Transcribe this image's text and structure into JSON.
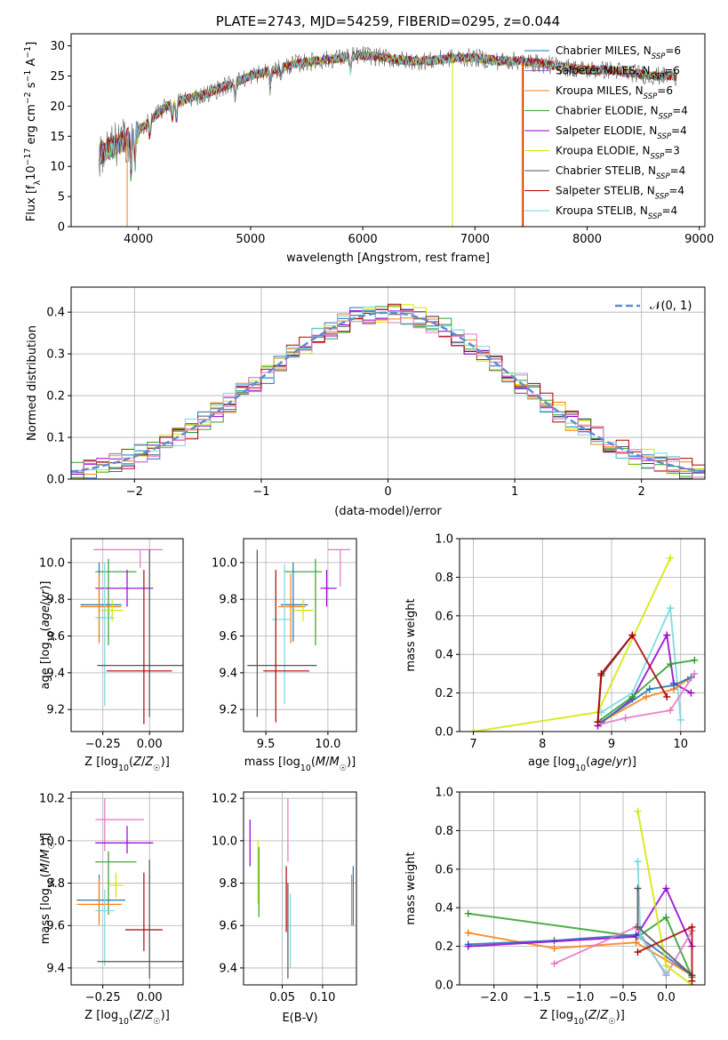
{
  "chart_data": [
    {
      "type": "line",
      "panel": "spectrum",
      "title": "PLATE=2743, MJD=54259, FIBERID=0295, z=0.044",
      "xlabel": "wavelength [Angstrom, rest frame]",
      "ylabel": "Flux [f_λ 10^-17 erg cm^-2 s^-1 A^-1]",
      "xlim": [
        3400,
        9050
      ],
      "ylim": [
        0,
        32
      ],
      "xticks": [
        4000,
        5000,
        6000,
        7000,
        8000,
        9000
      ],
      "yticks": [
        0,
        5,
        10,
        15,
        20,
        25,
        30
      ],
      "grid": false,
      "legend_position": "top-right",
      "series": [
        {
          "name": "Chabrier MILES, N_SSP=6",
          "color": "#1f77b4"
        },
        {
          "name": "Salpeter MILES, N_SSP=6",
          "color": "#9467bd"
        },
        {
          "name": "Kroupa MILES, N_SSP=6",
          "color": "#ff7f0e"
        },
        {
          "name": "Chabrier ELODIE, N_SSP=4",
          "color": "#2ca02c"
        },
        {
          "name": "Salpeter ELODIE, N_SSP=4",
          "color": "#9400d3"
        },
        {
          "name": "Kroupa ELODIE, N_SSP=3",
          "color": "#d4e600"
        },
        {
          "name": "Chabrier STELIB, N_SSP=4",
          "color": "#555555"
        },
        {
          "name": "Salpeter STELIB, N_SSP=4",
          "color": "#b00000"
        },
        {
          "name": "Kroupa STELIB, N_SSP=4",
          "color": "#76d7de"
        }
      ],
      "continuum": {
        "x": [
          3650,
          3800,
          3950,
          4100,
          4250,
          4400,
          4600,
          4800,
          5000,
          5200,
          5400,
          5600,
          5800,
          6000,
          6200,
          6400,
          6600,
          6800,
          7000,
          7200,
          7400,
          7600,
          7800,
          8000,
          8200,
          8400,
          8600,
          8800
        ],
        "y": [
          12,
          13.5,
          15,
          17.5,
          20,
          21,
          22,
          23.5,
          25,
          26,
          27,
          27.5,
          28,
          28.5,
          28,
          27.5,
          27.5,
          28,
          28,
          27.5,
          27.5,
          27,
          26.5,
          26,
          26,
          25.5,
          25,
          25
        ]
      }
    },
    {
      "type": "line",
      "panel": "residual-histogram",
      "xlabel": "(data-model)/error",
      "ylabel": "Normed distribution",
      "xlim": [
        -2.5,
        2.5
      ],
      "ylim": [
        0,
        0.46
      ],
      "xticks": [
        -2,
        -1,
        0,
        1,
        2
      ],
      "yticks": [
        0.0,
        0.1,
        0.2,
        0.3,
        0.4
      ],
      "grid": true,
      "legend_position": "top-right",
      "reference": {
        "name": "𝒩(0, 1)",
        "color": "#5b8dd6",
        "mean": 0,
        "sigma": 1
      },
      "bin_width": 0.1,
      "histogram_colors": [
        "#1f77b4",
        "#ff7f0e",
        "#2ca02c",
        "#9400d3",
        "#d4e600",
        "#555555",
        "#b00000",
        "#76d7de",
        "#e377c2"
      ]
    },
    {
      "type": "scatter",
      "panel": "age-vs-metallicity",
      "xlabel": "Z [log10(Z/Z☉)]",
      "ylabel": "age  [log10(age/yr)]",
      "xlim": [
        -0.42,
        0.18
      ],
      "ylim": [
        9.08,
        10.13
      ],
      "xticks": [
        -0.25,
        0.0
      ],
      "yticks": [
        9.2,
        9.4,
        9.6,
        9.8,
        10.0
      ],
      "grid": true,
      "points": [
        {
          "x": -0.05,
          "y": 10.07,
          "xerr": [
            0.25,
            0.12
          ],
          "yerr": [
            0.1,
            0.0
          ],
          "color": "#e377c2"
        },
        {
          "x": -0.22,
          "y": 9.95,
          "xerr": [
            0.07,
            0.15
          ],
          "yerr": [
            0.4,
            0.07
          ],
          "color": "#2ca02c"
        },
        {
          "x": -0.12,
          "y": 9.86,
          "xerr": [
            0.17,
            0.14
          ],
          "yerr": [
            0.1,
            0.1
          ],
          "color": "#9400d3"
        },
        {
          "x": -0.27,
          "y": 9.77,
          "xerr": [
            0.1,
            0.12
          ],
          "yerr": [
            0.2,
            0.23
          ],
          "color": "#1f77b4"
        },
        {
          "x": -0.27,
          "y": 9.76,
          "xerr": [
            0.1,
            0.12
          ],
          "yerr": [
            0.2,
            0.18
          ],
          "color": "#ff7f0e"
        },
        {
          "x": -0.2,
          "y": 9.74,
          "xerr": [
            0.06,
            0.06
          ],
          "yerr": [
            0.06,
            0.06
          ],
          "color": "#d4e600"
        },
        {
          "x": -0.24,
          "y": 9.7,
          "xerr": [
            0.05,
            0.05
          ],
          "yerr": [
            0.48,
            0.3
          ],
          "color": "#76d7de"
        },
        {
          "x": 0.0,
          "y": 9.44,
          "xerr": [
            0.28,
            0.25
          ],
          "yerr": [
            0.28,
            0.63
          ],
          "color": "#555555"
        },
        {
          "x": -0.03,
          "y": 9.41,
          "xerr": [
            0.2,
            0.15
          ],
          "yerr": [
            0.29,
            0.55
          ],
          "color": "#b00000"
        }
      ]
    },
    {
      "type": "scatter",
      "panel": "age-vs-mass",
      "xlabel": "mass [log10(M/M☉)]",
      "ylabel": "",
      "xlim": [
        9.32,
        10.23
      ],
      "ylim": [
        9.08,
        10.13
      ],
      "xticks": [
        9.5,
        10.0
      ],
      "yticks": [
        9.2,
        9.4,
        9.6,
        9.8,
        10.0
      ],
      "grid": true,
      "points": [
        {
          "x": 10.1,
          "y": 10.07,
          "xerr": [
            0.1,
            0.08
          ],
          "yerr": [
            0.2,
            0.0
          ],
          "color": "#e377c2"
        },
        {
          "x": 9.9,
          "y": 9.95,
          "xerr": [
            0.25,
            0.05
          ],
          "yerr": [
            0.4,
            0.07
          ],
          "color": "#2ca02c"
        },
        {
          "x": 9.99,
          "y": 9.86,
          "xerr": [
            0.05,
            0.08
          ],
          "yerr": [
            0.1,
            0.1
          ],
          "color": "#9400d3"
        },
        {
          "x": 9.72,
          "y": 9.77,
          "xerr": [
            0.1,
            0.12
          ],
          "yerr": [
            0.2,
            0.23
          ],
          "color": "#1f77b4"
        },
        {
          "x": 9.7,
          "y": 9.76,
          "xerr": [
            0.1,
            0.12
          ],
          "yerr": [
            0.2,
            0.18
          ],
          "color": "#ff7f0e"
        },
        {
          "x": 9.8,
          "y": 9.74,
          "xerr": [
            0.08,
            0.08
          ],
          "yerr": [
            0.06,
            0.06
          ],
          "color": "#d4e600"
        },
        {
          "x": 9.65,
          "y": 9.69,
          "xerr": [
            0.1,
            0.05
          ],
          "yerr": [
            0.46,
            0.3
          ],
          "color": "#76d7de"
        },
        {
          "x": 9.43,
          "y": 9.44,
          "xerr": [
            0.08,
            0.48
          ],
          "yerr": [
            0.28,
            0.63
          ],
          "color": "#555555"
        },
        {
          "x": 9.58,
          "y": 9.41,
          "xerr": [
            0.1,
            0.27
          ],
          "yerr": [
            0.28,
            0.55
          ],
          "color": "#b00000"
        }
      ]
    },
    {
      "type": "line",
      "panel": "mass-weight-vs-age",
      "xlabel": "age  [log10(age/yr)]",
      "ylabel": "mass weight",
      "xlim": [
        6.8,
        10.35
      ],
      "ylim": [
        0,
        1.0
      ],
      "xticks": [
        7,
        8,
        9,
        10
      ],
      "yticks": [
        0.0,
        0.2,
        0.4,
        0.6,
        0.8,
        1.0
      ],
      "grid": true,
      "series": [
        {
          "color": "#d4e600",
          "x": [
            7.0,
            8.8,
            9.85
          ],
          "y": [
            0.0,
            0.1,
            0.9
          ]
        },
        {
          "color": "#76d7de",
          "x": [
            8.85,
            9.3,
            9.85,
            10.0
          ],
          "y": [
            0.1,
            0.2,
            0.64,
            0.06
          ]
        },
        {
          "color": "#9400d3",
          "x": [
            8.8,
            9.3,
            9.8,
            9.9,
            10.15
          ],
          "y": [
            0.03,
            0.17,
            0.5,
            0.25,
            0.2
          ]
        },
        {
          "color": "#2ca02c",
          "x": [
            8.8,
            9.3,
            9.85,
            10.2
          ],
          "y": [
            0.05,
            0.18,
            0.35,
            0.37
          ]
        },
        {
          "color": "#ff7f0e",
          "x": [
            8.85,
            9.5,
            9.9,
            10.1
          ],
          "y": [
            0.05,
            0.18,
            0.22,
            0.27
          ]
        },
        {
          "color": "#1f77b4",
          "x": [
            8.85,
            9.55,
            9.9,
            10.15
          ],
          "y": [
            0.05,
            0.22,
            0.24,
            0.28
          ]
        },
        {
          "color": "#e377c2",
          "x": [
            8.85,
            9.2,
            9.85,
            10.2
          ],
          "y": [
            0.04,
            0.07,
            0.11,
            0.3
          ]
        },
        {
          "color": "#555555",
          "x": [
            8.8,
            8.85,
            9.3
          ],
          "y": [
            0.05,
            0.29,
            0.5
          ]
        },
        {
          "color": "#b00000",
          "x": [
            8.8,
            8.85,
            9.3,
            9.8
          ],
          "y": [
            0.05,
            0.3,
            0.5,
            0.18
          ]
        }
      ]
    },
    {
      "type": "scatter",
      "panel": "mass-vs-metallicity",
      "xlabel": "Z [log10(Z/Z☉)]",
      "ylabel": "mass [log10(M/M☉)]",
      "xlim": [
        -0.42,
        0.18
      ],
      "ylim": [
        9.32,
        10.23
      ],
      "xticks": [
        -0.25,
        0.0
      ],
      "yticks": [
        9.4,
        9.6,
        9.8,
        10.0,
        10.2
      ],
      "grid": true,
      "points": [
        {
          "x": -0.24,
          "y": 10.1,
          "xerr": [
            0.05,
            0.21
          ],
          "yerr": [
            0.15,
            0.1
          ],
          "color": "#e377c2"
        },
        {
          "x": -0.12,
          "y": 9.99,
          "xerr": [
            0.17,
            0.14
          ],
          "yerr": [
            0.05,
            0.08
          ],
          "color": "#9400d3"
        },
        {
          "x": -0.22,
          "y": 9.9,
          "xerr": [
            0.07,
            0.15
          ],
          "yerr": [
            0.25,
            0.05
          ],
          "color": "#2ca02c"
        },
        {
          "x": -0.18,
          "y": 9.79,
          "xerr": [
            0.04,
            0.04
          ],
          "yerr": [
            0.06,
            0.06
          ],
          "color": "#d4e600"
        },
        {
          "x": -0.27,
          "y": 9.72,
          "xerr": [
            0.12,
            0.14
          ],
          "yerr": [
            0.1,
            0.12
          ],
          "color": "#1f77b4"
        },
        {
          "x": -0.27,
          "y": 9.7,
          "xerr": [
            0.12,
            0.12
          ],
          "yerr": [
            0.1,
            0.12
          ],
          "color": "#ff7f0e"
        },
        {
          "x": -0.24,
          "y": 9.67,
          "xerr": [
            0.05,
            0.05
          ],
          "yerr": [
            0.26,
            0.1
          ],
          "color": "#76d7de"
        },
        {
          "x": -0.03,
          "y": 9.58,
          "xerr": [
            0.1,
            0.1
          ],
          "yerr": [
            0.1,
            0.27
          ],
          "color": "#b00000"
        },
        {
          "x": 0.0,
          "y": 9.43,
          "xerr": [
            0.28,
            0.25
          ],
          "yerr": [
            0.08,
            0.48
          ],
          "color": "#555555"
        }
      ]
    },
    {
      "type": "scatter",
      "panel": "mass-vs-extinction",
      "xlabel": "E(B-V)",
      "ylabel": "",
      "xlim": [
        0.002,
        0.142
      ],
      "ylim": [
        9.32,
        10.23
      ],
      "xticks": [
        0.05,
        0.1
      ],
      "yticks": [
        9.4,
        9.6,
        9.8,
        10.0,
        10.2
      ],
      "grid": true,
      "points": [
        {
          "x": 0.01,
          "y": 10.0,
          "xerr": [
            0,
            0
          ],
          "yerr": [
            0.12,
            0.1
          ],
          "color": "#9400d3"
        },
        {
          "x": 0.02,
          "y": 9.82,
          "xerr": [
            0,
            0
          ],
          "yerr": [
            0.12,
            0.18
          ],
          "color": "#d4e600"
        },
        {
          "x": 0.021,
          "y": 9.82,
          "xerr": [
            0,
            0
          ],
          "yerr": [
            0.18,
            0.15
          ],
          "color": "#2ca02c"
        },
        {
          "x": 0.057,
          "y": 10.05,
          "xerr": [
            0,
            0
          ],
          "yerr": [
            0.15,
            0.15
          ],
          "color": "#e377c2"
        },
        {
          "x": 0.055,
          "y": 9.69,
          "xerr": [
            0,
            0
          ],
          "yerr": [
            0.12,
            0.19
          ],
          "color": "#b00000"
        },
        {
          "x": 0.057,
          "y": 9.59,
          "xerr": [
            0,
            0
          ],
          "yerr": [
            0.24,
            0.21
          ],
          "color": "#555555"
        },
        {
          "x": 0.06,
          "y": 9.62,
          "xerr": [
            0,
            0
          ],
          "yerr": [
            0.22,
            0.13
          ],
          "color": "#76d7de"
        },
        {
          "x": 0.138,
          "y": 9.74,
          "xerr": [
            0,
            0
          ],
          "yerr": [
            0.14,
            0.14
          ],
          "color": "#1f77b4"
        },
        {
          "x": 0.136,
          "y": 9.74,
          "xerr": [
            0,
            0
          ],
          "yerr": [
            0.14,
            0.1
          ],
          "color": "#ff7f0e"
        }
      ]
    },
    {
      "type": "line",
      "panel": "mass-weight-vs-metallicity",
      "xlabel": "Z [log10(Z/Z☉)]",
      "ylabel": "mass weight",
      "xlim": [
        -2.4,
        0.45
      ],
      "ylim": [
        0,
        1.0
      ],
      "xticks": [
        -2.0,
        -1.5,
        -1.0,
        -0.5,
        0.0
      ],
      "yticks": [
        0.0,
        0.2,
        0.4,
        0.6,
        0.8,
        1.0
      ],
      "grid": true,
      "series": [
        {
          "color": "#2ca02c",
          "x": [
            -2.3,
            -0.33,
            0.0,
            0.3
          ],
          "y": [
            0.37,
            0.25,
            0.35,
            0.04
          ]
        },
        {
          "color": "#ff7f0e",
          "x": [
            -2.3,
            -1.3,
            -0.35,
            0.3
          ],
          "y": [
            0.27,
            0.19,
            0.22,
            0.05
          ]
        },
        {
          "color": "#1f77b4",
          "x": [
            -2.3,
            -1.3,
            -0.35,
            0.3
          ],
          "y": [
            0.21,
            0.23,
            0.26,
            0.05
          ]
        },
        {
          "color": "#9400d3",
          "x": [
            -2.3,
            -0.35,
            0.0,
            0.3
          ],
          "y": [
            0.2,
            0.25,
            0.5,
            0.2
          ]
        },
        {
          "color": "#e377c2",
          "x": [
            -1.3,
            -0.35,
            0.0,
            0.3
          ],
          "y": [
            0.11,
            0.3,
            0.05,
            0.28
          ]
        },
        {
          "color": "#d4e600",
          "x": [
            -0.33,
            0.0,
            0.3
          ],
          "y": [
            0.9,
            0.1,
            0.0
          ]
        },
        {
          "color": "#76d7de",
          "x": [
            -0.33,
            -0.3,
            0.0
          ],
          "y": [
            0.64,
            0.25,
            0.06
          ]
        },
        {
          "color": "#555555",
          "x": [
            -0.33,
            -0.33,
            0.3
          ],
          "y": [
            0.5,
            0.3,
            0.05
          ]
        },
        {
          "color": "#b00000",
          "x": [
            -0.33,
            0.3,
            0.3
          ],
          "y": [
            0.17,
            0.3,
            0.02
          ]
        }
      ]
    }
  ]
}
